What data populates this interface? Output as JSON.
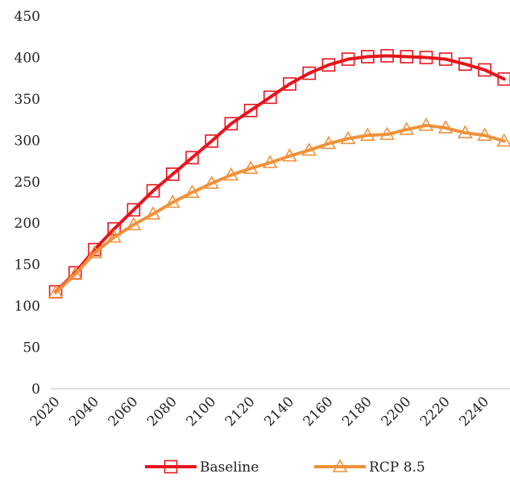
{
  "chart_data": {
    "type": "line",
    "title": "",
    "xlabel": "",
    "ylabel": "",
    "ylim": [
      0,
      450
    ],
    "yticks": [
      0,
      50,
      100,
      150,
      200,
      250,
      300,
      350,
      400,
      450
    ],
    "xticks": [
      2020,
      2040,
      2060,
      2080,
      2100,
      2120,
      2140,
      2160,
      2180,
      2200,
      2220,
      2240
    ],
    "x": [
      2020,
      2030,
      2040,
      2050,
      2060,
      2070,
      2080,
      2090,
      2100,
      2110,
      2120,
      2130,
      2140,
      2150,
      2160,
      2170,
      2180,
      2190,
      2200,
      2210,
      2220,
      2230,
      2240,
      2250
    ],
    "grid": false,
    "legend_position": "bottom",
    "series": [
      {
        "name": "Baseline",
        "color": "#e8141c",
        "marker": "square",
        "values": [
          117,
          140,
          168,
          193,
          216,
          239,
          259,
          279,
          299,
          320,
          336,
          352,
          368,
          381,
          391,
          398,
          401,
          402,
          401,
          400,
          398,
          392,
          385,
          374
        ]
      },
      {
        "name": "RCP 8.5",
        "color": "#f0913a",
        "marker": "triangle",
        "values": [
          116,
          138,
          164,
          183,
          198,
          211,
          225,
          237,
          248,
          258,
          266,
          273,
          281,
          288,
          296,
          302,
          306,
          307,
          313,
          318,
          315,
          309,
          306,
          299
        ]
      }
    ]
  }
}
